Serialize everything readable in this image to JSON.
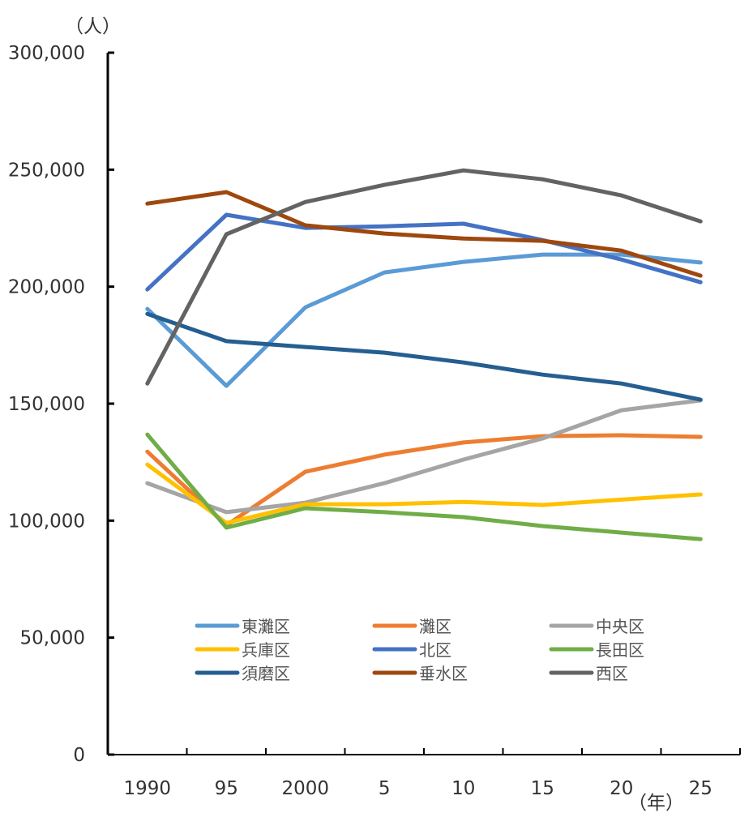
{
  "chart_data": {
    "type": "line",
    "title": "",
    "ylabel": "（人）",
    "xlabel": "（年）",
    "ylim": [
      0,
      300000
    ],
    "yticks": [
      0,
      50000,
      100000,
      150000,
      200000,
      250000,
      300000
    ],
    "ytick_labels": [
      "0",
      "50,000",
      "100,000",
      "150,000",
      "200,000",
      "250,000",
      "300,000"
    ],
    "categories": [
      "1990",
      "95",
      "2000",
      "5",
      "10",
      "15",
      "20",
      "25"
    ],
    "grid": false,
    "legend_position": "bottom-inside",
    "series": [
      {
        "name": "東灘区",
        "color": "#5B9BD5",
        "values": [
          190500,
          157600,
          191200,
          206100,
          210600,
          213700,
          213700,
          210300
        ]
      },
      {
        "name": "灘区",
        "color": "#ED7D31",
        "values": [
          129500,
          98000,
          120900,
          128200,
          133400,
          136100,
          136500,
          135800
        ]
      },
      {
        "name": "中央区",
        "color": "#A5A5A5",
        "values": [
          116000,
          103600,
          107700,
          116000,
          126100,
          135100,
          147200,
          151400
        ]
      },
      {
        "name": "兵庫区",
        "color": "#FFC000",
        "values": [
          124000,
          99000,
          107000,
          107000,
          108000,
          106700,
          109000,
          111200
        ]
      },
      {
        "name": "北区",
        "color": "#4472C4",
        "values": [
          198800,
          230700,
          225100,
          225800,
          226900,
          219900,
          211600,
          201900
        ]
      },
      {
        "name": "長田区",
        "color": "#70AD47",
        "values": [
          136800,
          97000,
          105300,
          103600,
          101500,
          97700,
          94900,
          92100
        ]
      },
      {
        "name": "須磨区",
        "color": "#255E91",
        "values": [
          188400,
          176700,
          174200,
          171800,
          167600,
          162400,
          158600,
          151700
        ]
      },
      {
        "name": "垂水区",
        "color": "#9E480E",
        "values": [
          235500,
          240400,
          226200,
          222700,
          220600,
          219600,
          215400,
          204700
        ]
      },
      {
        "name": "西区",
        "color": "#636363",
        "values": [
          158600,
          222400,
          236200,
          243500,
          249700,
          245900,
          239000,
          227900
        ]
      }
    ]
  }
}
